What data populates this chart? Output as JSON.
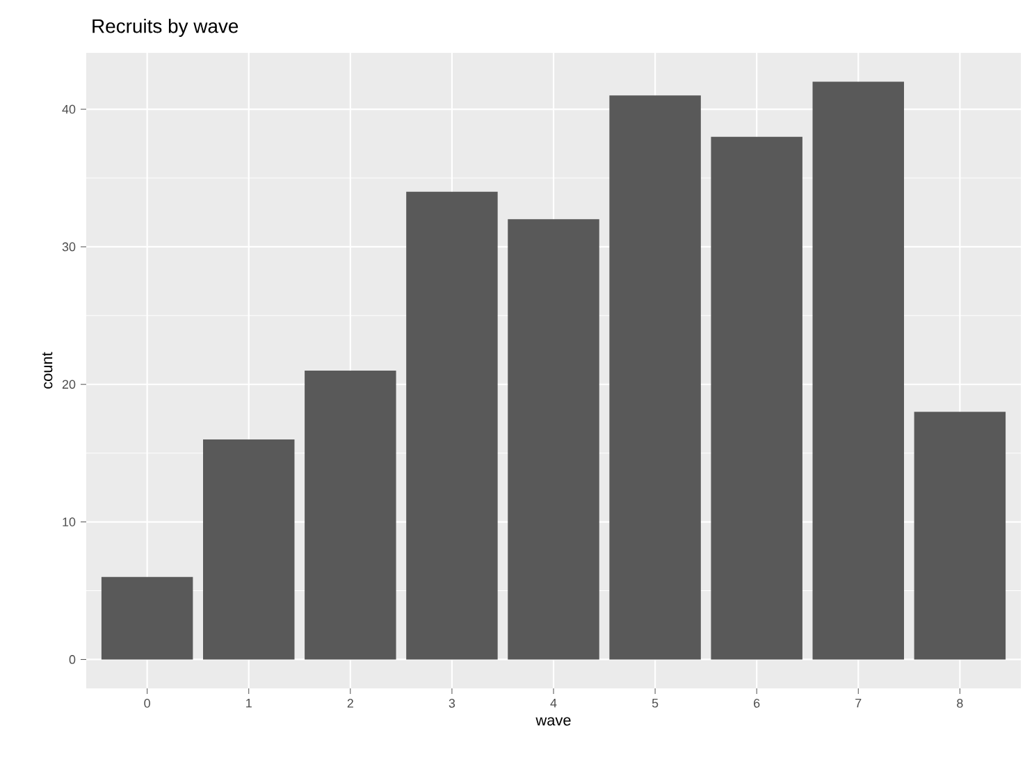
{
  "chart_data": {
    "type": "bar",
    "title": "Recruits by wave",
    "xlabel": "wave",
    "ylabel": "count",
    "categories": [
      "0",
      "1",
      "2",
      "3",
      "4",
      "5",
      "6",
      "7",
      "8"
    ],
    "values": [
      6,
      16,
      21,
      34,
      32,
      41,
      38,
      42,
      18
    ],
    "color": "#595959",
    "ylim": [
      -2.1,
      44.1
    ],
    "yticks": [
      0,
      10,
      20,
      30,
      40
    ],
    "grid": true
  }
}
